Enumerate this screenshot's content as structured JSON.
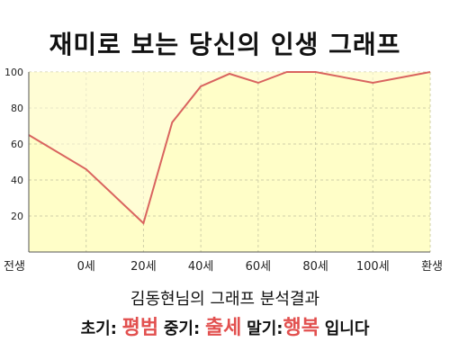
{
  "title": "재미로 보는 당신의 인생 그래프",
  "subtitle": "김동현님의 그래프 분석결과",
  "result": {
    "early_label": "초기:",
    "early_value": "평범",
    "mid_label": "중기:",
    "mid_value": "출세",
    "late_label": "말기:",
    "late_value": "행복",
    "ending": "입니다"
  },
  "colors": {
    "plot_bg": "#fffec8",
    "line": "#d9645f",
    "grid": "#cfcfa8",
    "highlight": "#e2504f"
  },
  "chart_data": {
    "type": "area",
    "title": "재미로 보는 당신의 인생 그래프",
    "xlabel": "",
    "ylabel": "",
    "categories": [
      "전생",
      "0세",
      "20세",
      "40세",
      "60세",
      "80세",
      "100세",
      "환생"
    ],
    "yticks": [
      20,
      40,
      60,
      80,
      100
    ],
    "ylim": [
      0,
      100
    ],
    "grid": true,
    "legend": "none",
    "series": [
      {
        "x": [
          -20,
          0,
          20,
          30,
          40,
          50,
          60,
          70,
          80,
          100,
          120
        ],
        "values": [
          65,
          46,
          16,
          72,
          92,
          99,
          94,
          100,
          100,
          94,
          100
        ]
      }
    ]
  }
}
